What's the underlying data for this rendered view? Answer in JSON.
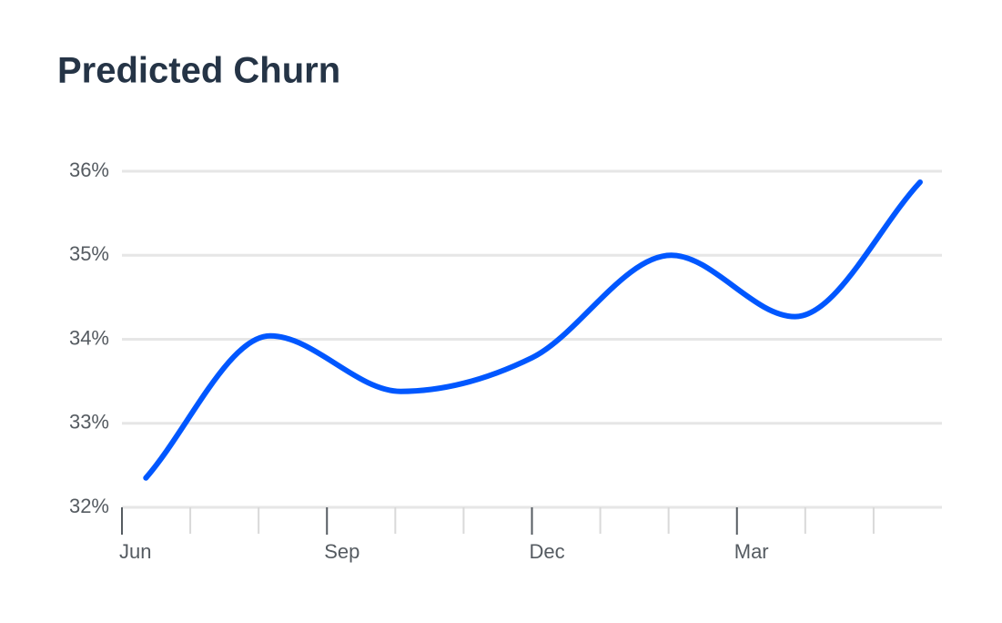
{
  "chart_data": {
    "type": "line",
    "title": "Predicted Churn",
    "x": [
      0.35,
      2.17,
      4.08,
      6,
      8.04,
      9.85,
      11.68
    ],
    "series": [
      {
        "color": "#0057ff",
        "values": [
          32.35,
          34.04,
          33.38,
          33.78,
          35.0,
          34.27,
          35.87
        ]
      }
    ],
    "xlim": [
      0,
      12
    ],
    "xticks": [
      {
        "value": 0,
        "label": "Jun"
      },
      {
        "value": 3,
        "label": "Sep"
      },
      {
        "value": 6,
        "label": "Dec"
      },
      {
        "value": 9,
        "label": "Mar"
      }
    ],
    "xminor_ticks": [
      1,
      2,
      4,
      5,
      7,
      8,
      10,
      11
    ],
    "ylim": [
      32,
      36
    ],
    "yticks": [
      {
        "value": 32,
        "label": "32%"
      },
      {
        "value": 33,
        "label": "33%"
      },
      {
        "value": 34,
        "label": "34%"
      },
      {
        "value": 35,
        "label": "35%"
      },
      {
        "value": 36,
        "label": "36%"
      }
    ],
    "grid": true
  }
}
